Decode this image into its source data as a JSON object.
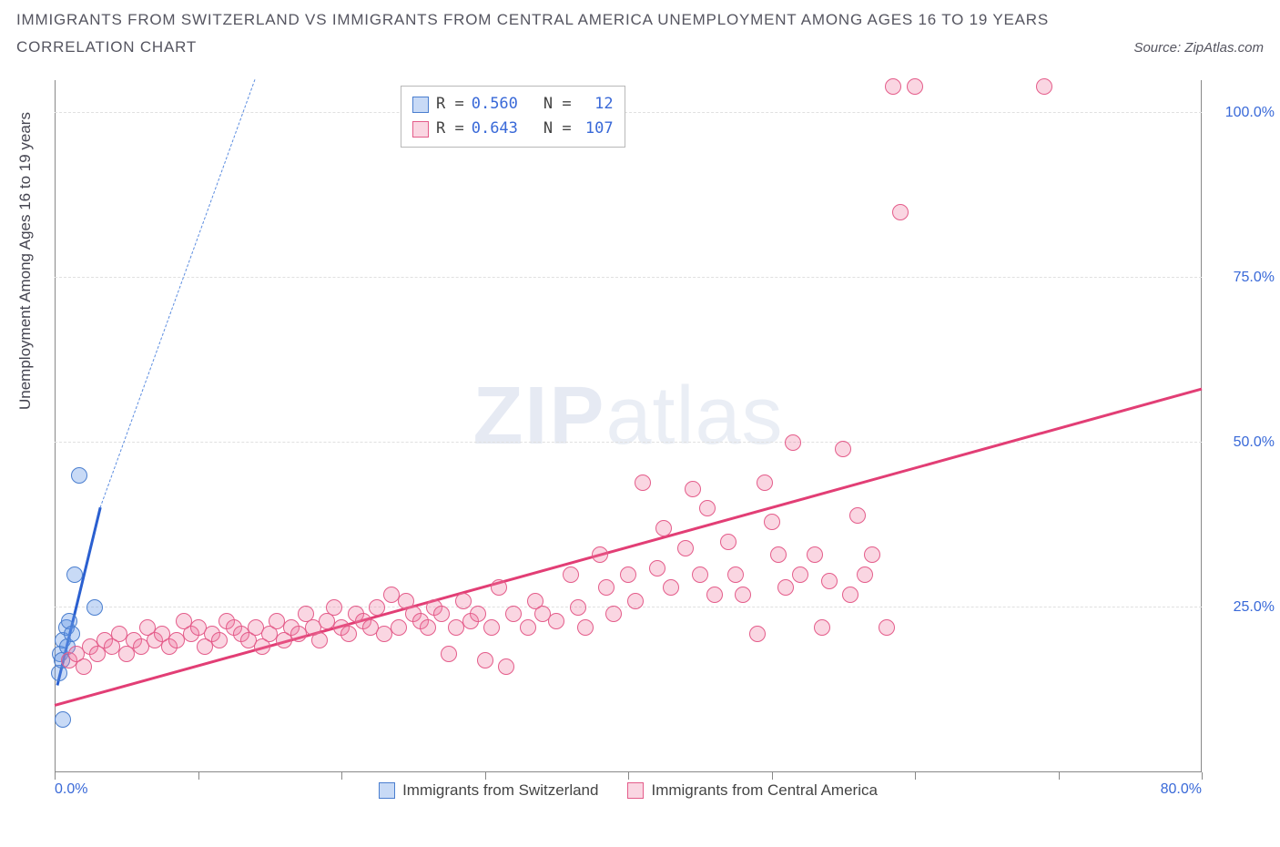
{
  "title_line1": "IMMIGRANTS FROM SWITZERLAND VS IMMIGRANTS FROM CENTRAL AMERICA UNEMPLOYMENT AMONG AGES 16 TO 19 YEARS",
  "title_line2": "CORRELATION CHART",
  "source_label": "Source: ZipAtlas.com",
  "y_axis_label": "Unemployment Among Ages 16 to 19 years",
  "watermark": {
    "part1": "ZIP",
    "part2": "atlas"
  },
  "chart": {
    "type": "scatter",
    "xlim": [
      0,
      80
    ],
    "ylim": [
      0,
      105
    ],
    "background_color": "#ffffff",
    "grid_color": "#e0e0e0",
    "axis_color": "#888888",
    "tick_label_color": "#3969d8",
    "y_ticks": [
      {
        "value": 25,
        "label": "25.0%"
      },
      {
        "value": 50,
        "label": "50.0%"
      },
      {
        "value": 75,
        "label": "75.0%"
      },
      {
        "value": 100,
        "label": "100.0%"
      }
    ],
    "x_ticks": [
      {
        "value": 0,
        "label": "0.0%"
      },
      {
        "value": 80,
        "label": "80.0%"
      }
    ],
    "x_tick_marks": [
      0,
      10,
      20,
      30,
      40,
      50,
      60,
      70,
      80
    ],
    "series": [
      {
        "name": "Immigrants from Switzerland",
        "fill_color": "rgba(96,150,230,0.35)",
        "stroke_color": "#4a7ecf",
        "marker_radius": 9,
        "regression_solid_color": "#2a5fd0",
        "regression_dashed_color": "#5c8de0",
        "regression": {
          "x1": 0.2,
          "y1": 13,
          "x2_solid": 3.2,
          "y2_solid": 40,
          "x2_dash": 14,
          "y2_dash": 130
        },
        "stats": {
          "r_label": "R =",
          "r": "0.560",
          "n_label": "N =",
          "n": "12"
        },
        "points": [
          {
            "x": 0.3,
            "y": 15
          },
          {
            "x": 0.4,
            "y": 18
          },
          {
            "x": 0.5,
            "y": 17
          },
          {
            "x": 0.6,
            "y": 20
          },
          {
            "x": 0.8,
            "y": 22
          },
          {
            "x": 0.9,
            "y": 19
          },
          {
            "x": 1.0,
            "y": 23
          },
          {
            "x": 1.2,
            "y": 21
          },
          {
            "x": 1.4,
            "y": 30
          },
          {
            "x": 1.7,
            "y": 45
          },
          {
            "x": 2.8,
            "y": 25
          },
          {
            "x": 0.6,
            "y": 8
          }
        ]
      },
      {
        "name": "Immigrants from Central America",
        "fill_color": "rgba(240,120,160,0.30)",
        "stroke_color": "#e45c8a",
        "marker_radius": 9,
        "regression_solid_color": "#e23e75",
        "regression": {
          "x1": 0,
          "y1": 10,
          "x2_solid": 80,
          "y2_solid": 58
        },
        "stats": {
          "r_label": "R =",
          "r": "0.643",
          "n_label": "N =",
          "n": "107"
        },
        "points": [
          {
            "x": 1,
            "y": 17
          },
          {
            "x": 1.5,
            "y": 18
          },
          {
            "x": 2,
            "y": 16
          },
          {
            "x": 2.5,
            "y": 19
          },
          {
            "x": 3,
            "y": 18
          },
          {
            "x": 3.5,
            "y": 20
          },
          {
            "x": 4,
            "y": 19
          },
          {
            "x": 4.5,
            "y": 21
          },
          {
            "x": 5,
            "y": 18
          },
          {
            "x": 5.5,
            "y": 20
          },
          {
            "x": 6,
            "y": 19
          },
          {
            "x": 6.5,
            "y": 22
          },
          {
            "x": 7,
            "y": 20
          },
          {
            "x": 7.5,
            "y": 21
          },
          {
            "x": 8,
            "y": 19
          },
          {
            "x": 8.5,
            "y": 20
          },
          {
            "x": 9,
            "y": 23
          },
          {
            "x": 9.5,
            "y": 21
          },
          {
            "x": 10,
            "y": 22
          },
          {
            "x": 10.5,
            "y": 19
          },
          {
            "x": 11,
            "y": 21
          },
          {
            "x": 11.5,
            "y": 20
          },
          {
            "x": 12,
            "y": 23
          },
          {
            "x": 12.5,
            "y": 22
          },
          {
            "x": 13,
            "y": 21
          },
          {
            "x": 13.5,
            "y": 20
          },
          {
            "x": 14,
            "y": 22
          },
          {
            "x": 14.5,
            "y": 19
          },
          {
            "x": 15,
            "y": 21
          },
          {
            "x": 15.5,
            "y": 23
          },
          {
            "x": 16,
            "y": 20
          },
          {
            "x": 16.5,
            "y": 22
          },
          {
            "x": 17,
            "y": 21
          },
          {
            "x": 17.5,
            "y": 24
          },
          {
            "x": 18,
            "y": 22
          },
          {
            "x": 18.5,
            "y": 20
          },
          {
            "x": 19,
            "y": 23
          },
          {
            "x": 19.5,
            "y": 25
          },
          {
            "x": 20,
            "y": 22
          },
          {
            "x": 20.5,
            "y": 21
          },
          {
            "x": 21,
            "y": 24
          },
          {
            "x": 21.5,
            "y": 23
          },
          {
            "x": 22,
            "y": 22
          },
          {
            "x": 22.5,
            "y": 25
          },
          {
            "x": 23,
            "y": 21
          },
          {
            "x": 23.5,
            "y": 27
          },
          {
            "x": 24,
            "y": 22
          },
          {
            "x": 24.5,
            "y": 26
          },
          {
            "x": 25,
            "y": 24
          },
          {
            "x": 25.5,
            "y": 23
          },
          {
            "x": 26,
            "y": 22
          },
          {
            "x": 26.5,
            "y": 25
          },
          {
            "x": 27,
            "y": 24
          },
          {
            "x": 27.5,
            "y": 18
          },
          {
            "x": 28,
            "y": 22
          },
          {
            "x": 28.5,
            "y": 26
          },
          {
            "x": 29,
            "y": 23
          },
          {
            "x": 29.5,
            "y": 24
          },
          {
            "x": 30,
            "y": 17
          },
          {
            "x": 30.5,
            "y": 22
          },
          {
            "x": 31,
            "y": 28
          },
          {
            "x": 31.5,
            "y": 16
          },
          {
            "x": 32,
            "y": 24
          },
          {
            "x": 33,
            "y": 22
          },
          {
            "x": 33.5,
            "y": 26
          },
          {
            "x": 34,
            "y": 24
          },
          {
            "x": 35,
            "y": 23
          },
          {
            "x": 36,
            "y": 30
          },
          {
            "x": 36.5,
            "y": 25
          },
          {
            "x": 37,
            "y": 22
          },
          {
            "x": 38,
            "y": 33
          },
          {
            "x": 38.5,
            "y": 28
          },
          {
            "x": 39,
            "y": 24
          },
          {
            "x": 40,
            "y": 30
          },
          {
            "x": 40.5,
            "y": 26
          },
          {
            "x": 41,
            "y": 44
          },
          {
            "x": 42,
            "y": 31
          },
          {
            "x": 42.5,
            "y": 37
          },
          {
            "x": 43,
            "y": 28
          },
          {
            "x": 44,
            "y": 34
          },
          {
            "x": 44.5,
            "y": 43
          },
          {
            "x": 45,
            "y": 30
          },
          {
            "x": 45.5,
            "y": 40
          },
          {
            "x": 46,
            "y": 27
          },
          {
            "x": 47,
            "y": 35
          },
          {
            "x": 47.5,
            "y": 30
          },
          {
            "x": 48,
            "y": 27
          },
          {
            "x": 49,
            "y": 21
          },
          {
            "x": 49.5,
            "y": 44
          },
          {
            "x": 50,
            "y": 38
          },
          {
            "x": 51,
            "y": 28
          },
          {
            "x": 51.5,
            "y": 50
          },
          {
            "x": 52,
            "y": 30
          },
          {
            "x": 53,
            "y": 33
          },
          {
            "x": 54,
            "y": 29
          },
          {
            "x": 55,
            "y": 49
          },
          {
            "x": 55.5,
            "y": 27
          },
          {
            "x": 56,
            "y": 39
          },
          {
            "x": 57,
            "y": 33
          },
          {
            "x": 58,
            "y": 22
          },
          {
            "x": 58.5,
            "y": 104
          },
          {
            "x": 60,
            "y": 104
          },
          {
            "x": 59,
            "y": 85
          },
          {
            "x": 69,
            "y": 104
          },
          {
            "x": 53.5,
            "y": 22
          },
          {
            "x": 56.5,
            "y": 30
          },
          {
            "x": 50.5,
            "y": 33
          }
        ]
      }
    ]
  },
  "bottom_legend": {
    "items": [
      {
        "label": "Immigrants from Switzerland",
        "fill": "rgba(96,150,230,0.35)",
        "stroke": "#4a7ecf"
      },
      {
        "label": "Immigrants from Central America",
        "fill": "rgba(240,120,160,0.30)",
        "stroke": "#e45c8a"
      }
    ]
  }
}
